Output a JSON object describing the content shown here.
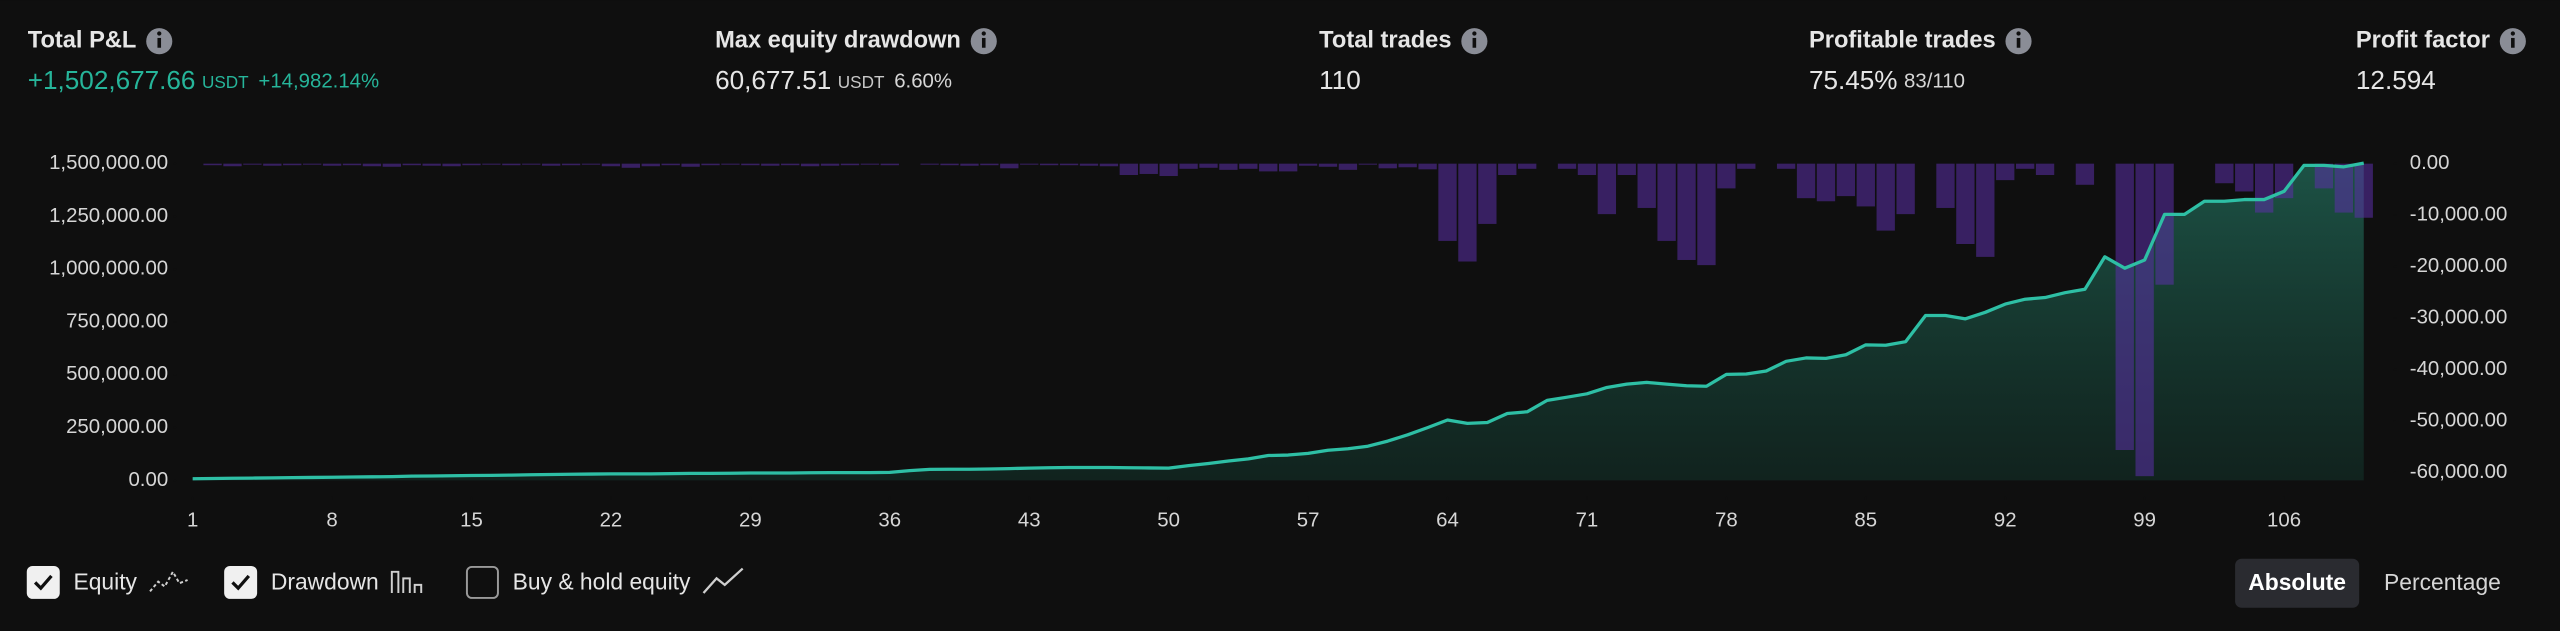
{
  "stats": [
    {
      "label": "Total P&L",
      "value": "+1,502,677.66",
      "unit": "USDT",
      "extra": "+14,982.14%",
      "positive": true
    },
    {
      "label": "Max equity drawdown",
      "value": "60,677.51",
      "unit": "USDT",
      "extra": "6.60%"
    },
    {
      "label": "Total trades",
      "value": "110"
    },
    {
      "label": "Profitable trades",
      "value": "75.45%",
      "extra": "83/110"
    },
    {
      "label": "Profit factor",
      "value": "12.594"
    }
  ],
  "chart_data": {
    "type": "line",
    "x": [
      1,
      2,
      3,
      4,
      5,
      6,
      7,
      8,
      9,
      10,
      11,
      12,
      13,
      14,
      15,
      16,
      17,
      18,
      19,
      20,
      21,
      22,
      23,
      24,
      25,
      26,
      27,
      28,
      29,
      30,
      31,
      32,
      33,
      34,
      35,
      36,
      37,
      38,
      39,
      40,
      41,
      42,
      43,
      44,
      45,
      46,
      47,
      48,
      49,
      50,
      51,
      52,
      53,
      54,
      55,
      56,
      57,
      58,
      59,
      60,
      61,
      62,
      63,
      64,
      65,
      66,
      67,
      68,
      69,
      70,
      71,
      72,
      73,
      74,
      75,
      76,
      77,
      78,
      79,
      80,
      81,
      82,
      83,
      84,
      85,
      86,
      87,
      88,
      89,
      90,
      91,
      92,
      93,
      94,
      95,
      96,
      97,
      98,
      99,
      100,
      101,
      102,
      103,
      104,
      105,
      106,
      107,
      108,
      109,
      110
    ],
    "xlim": [
      1,
      111
    ],
    "xticks": [
      1,
      8,
      15,
      22,
      29,
      36,
      43,
      50,
      57,
      64,
      71,
      78,
      85,
      92,
      99,
      106
    ],
    "ylim": [
      0,
      1500000
    ],
    "yticks": [
      {
        "value": 0,
        "label": "0.00"
      },
      {
        "value": 250000,
        "label": "250,000.00"
      },
      {
        "value": 500000,
        "label": "500,000.00"
      },
      {
        "value": 750000,
        "label": "750,000.00"
      },
      {
        "value": 1000000,
        "label": "1,000,000.00"
      },
      {
        "value": 1250000,
        "label": "1,250,000.00"
      },
      {
        "value": 1500000,
        "label": "1,500,000.00"
      }
    ],
    "y2lim": [
      -61500,
      0
    ],
    "y2ticks": [
      {
        "value": 0,
        "label": "0.00"
      },
      {
        "value": -10000,
        "label": "-10,000.00"
      },
      {
        "value": -20000,
        "label": "-20,000.00"
      },
      {
        "value": -30000,
        "label": "-30,000.00"
      },
      {
        "value": -40000,
        "label": "-40,000.00"
      },
      {
        "value": -50000,
        "label": "-50,000.00"
      },
      {
        "value": -60000,
        "label": "-60,000.00"
      }
    ],
    "series": [
      {
        "name": "Equity",
        "type": "area",
        "color": "#2ebfa5",
        "checked": true,
        "values": [
          8000,
          9000,
          10000,
          11000,
          12000,
          13000,
          14000,
          15000,
          16000,
          17000,
          18000,
          20000,
          21000,
          22000,
          23000,
          24000,
          25000,
          27000,
          28000,
          29000,
          30000,
          31000,
          31000,
          31000,
          32000,
          33000,
          33000,
          34000,
          35000,
          35000,
          35000,
          36000,
          37000,
          37000,
          37000,
          38000,
          46000,
          52000,
          53000,
          53000,
          54000,
          56000,
          58000,
          60000,
          61000,
          61000,
          61000,
          60000,
          59000,
          58000,
          70000,
          80000,
          92000,
          102000,
          118000,
          120000,
          128000,
          143000,
          150000,
          162000,
          186000,
          216000,
          250000,
          286000,
          270000,
          274000,
          317000,
          325000,
          379000,
          394000,
          410000,
          440000,
          456000,
          464000,
          456000,
          448000,
          446000,
          502000,
          504000,
          518000,
          564000,
          580000,
          578000,
          595000,
          642000,
          640000,
          657000,
          781000,
          781000,
          765000,
          796000,
          835000,
          858000,
          866000,
          889000,
          905000,
          1059000,
          1005000,
          1044000,
          1260000,
          1260000,
          1322000,
          1322000,
          1330000,
          1330000,
          1369000,
          1492000,
          1492000,
          1485000,
          1502677.66
        ]
      },
      {
        "name": "Drawdown",
        "type": "bar",
        "axis": "y2",
        "color": "#5b2fa8",
        "checked": true,
        "values": [
          0,
          -300,
          -500,
          -200,
          -400,
          -300,
          -200,
          -400,
          -300,
          -500,
          -600,
          -300,
          -400,
          -500,
          -300,
          -200,
          -300,
          -200,
          -400,
          -300,
          -200,
          -500,
          -800,
          -500,
          -300,
          -600,
          -300,
          -200,
          -300,
          -400,
          -300,
          -500,
          -400,
          -300,
          -200,
          -300,
          0,
          -200,
          -300,
          -400,
          -300,
          -900,
          -200,
          -300,
          -300,
          -400,
          -500,
          -2200,
          -2000,
          -2400,
          -1000,
          -800,
          -1200,
          -1000,
          -1500,
          -1500,
          -400,
          -600,
          -1200,
          -200,
          -900,
          -700,
          -1100,
          -15000,
          -19000,
          -11700,
          -2200,
          -1000,
          0,
          -1000,
          -2200,
          -9800,
          -2200,
          -8600,
          -15000,
          -18700,
          -19700,
          -4800,
          -1000,
          0,
          -1000,
          -6700,
          -7300,
          -6300,
          -8300,
          -13000,
          -9800,
          0,
          -8600,
          -15600,
          -18100,
          -3200,
          -1000,
          -2200,
          0,
          -4100,
          0,
          -55600,
          -60677.51,
          -23500,
          0,
          0,
          -3800,
          -5400,
          -9500,
          -6700,
          0,
          -4800,
          -9500,
          -10500
        ]
      }
    ]
  },
  "extra_toggle": {
    "label": "Buy & hold equity",
    "checked": false
  },
  "view_modes": {
    "options": [
      "Absolute",
      "Percentage"
    ],
    "selected": 0
  }
}
